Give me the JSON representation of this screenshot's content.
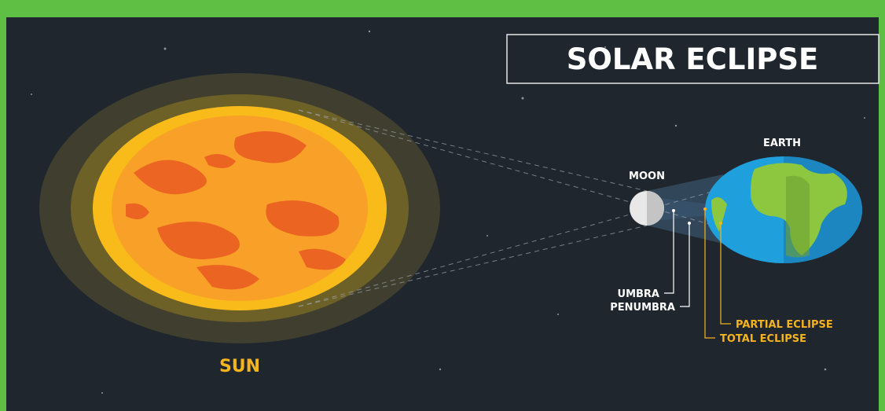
{
  "title": "SOLAR ECLIPSE",
  "bodies": {
    "sun": "SUN",
    "moon": "MOON",
    "earth": "EARTH"
  },
  "labels": {
    "umbra": "UMBRA",
    "penumbra": "PENUMBRA",
    "partial": "PARTIAL ECLIPSE",
    "total": "TOTAL ECLIPSE"
  }
}
